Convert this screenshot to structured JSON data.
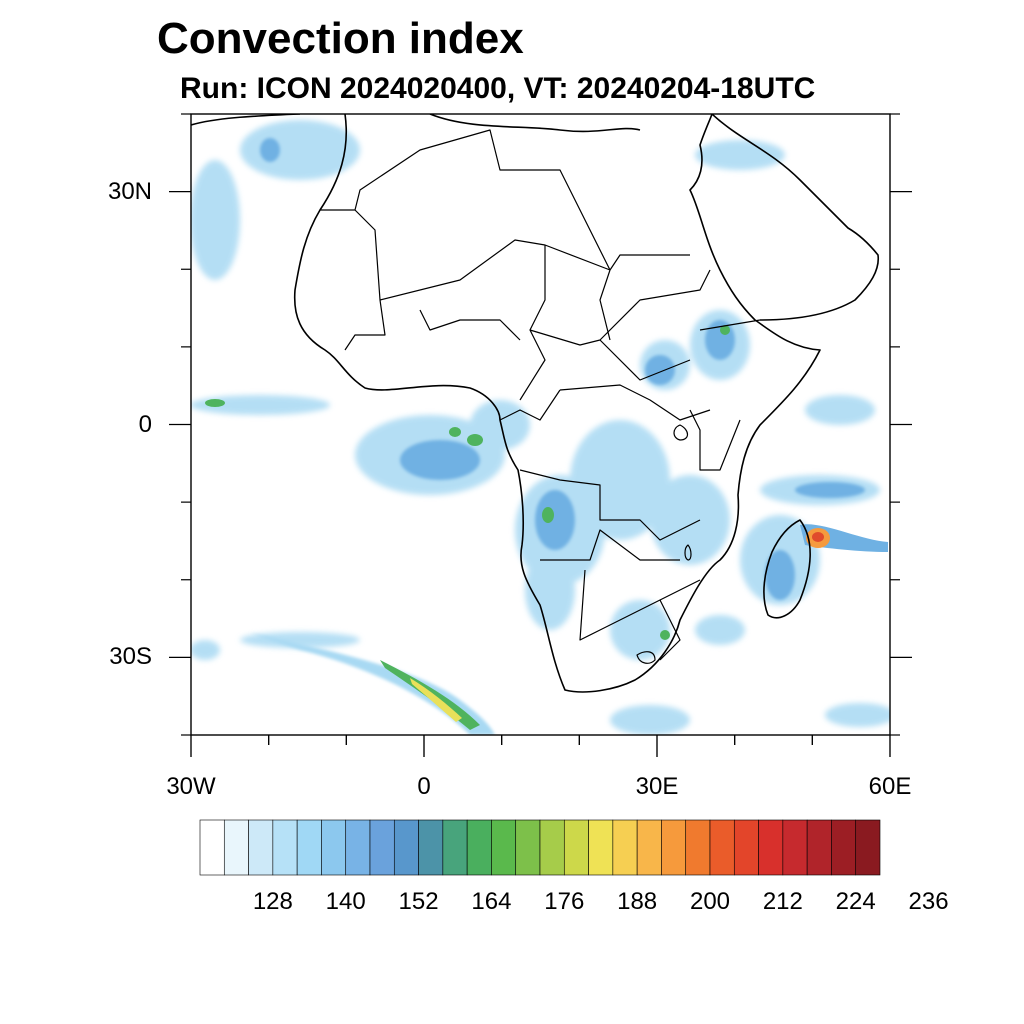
{
  "title": "Convection index",
  "subtitle": "Run: ICON 2024020400,  VT: 20240204-18UTC",
  "map": {
    "lon_range": [
      -30,
      60
    ],
    "lat_range": [
      -40,
      40
    ],
    "x_ticks": [
      {
        "label": "30W",
        "lon": -30
      },
      {
        "label": "0",
        "lon": 0
      },
      {
        "label": "30E",
        "lon": 30
      },
      {
        "label": "60E",
        "lon": 60
      }
    ],
    "y_ticks": [
      {
        "label": "30N",
        "lat": 30
      },
      {
        "label": "0",
        "lat": 0
      },
      {
        "label": "30S",
        "lat": -30
      }
    ],
    "border_color": "#000000",
    "background": "#ffffff"
  },
  "colorbar": {
    "colors": [
      "#ffffff",
      "#e9f6fc",
      "#cde9f8",
      "#b6e1f7",
      "#a0d8f5",
      "#8cc8ee",
      "#78b3e6",
      "#6aa2dc",
      "#5897cc",
      "#4c93a8",
      "#48a47c",
      "#4aaf5e",
      "#5ab94c",
      "#7dc04a",
      "#a6cc4a",
      "#cdd84a",
      "#efe255",
      "#f6cf52",
      "#f8b64a",
      "#f69a3c",
      "#f07a2e",
      "#ea5c2a",
      "#e3452a",
      "#d8302c",
      "#c62a2e",
      "#b0242a",
      "#9c1e24",
      "#8a1a20"
    ],
    "labels": [
      "128",
      "140",
      "152",
      "164",
      "176",
      "188",
      "200",
      "212",
      "224",
      "236"
    ]
  },
  "field_colors": {
    "light_blue": "#a8d9f3",
    "mid_blue": "#6fb1e3",
    "teal": "#4c9a9a",
    "green": "#4fb35e",
    "yellow": "#e9e05a",
    "orange": "#f59a3e",
    "red": "#e04a2c"
  }
}
